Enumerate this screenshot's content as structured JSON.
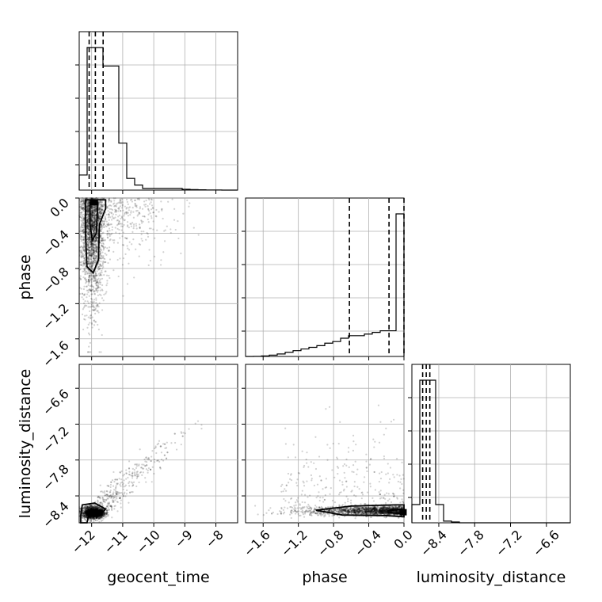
{
  "chart_data": {
    "type": "corner",
    "title": "",
    "parameters": [
      {
        "name": "geocent_time",
        "label": "geocent_time",
        "range": [
          -12.4,
          -7.3
        ],
        "ticks": [
          "−12",
          "−11",
          "−10",
          "−9",
          "−8"
        ],
        "tick_values": [
          -12,
          -11,
          -10,
          -9,
          -8
        ],
        "quantiles": [
          -12.08,
          -11.88,
          -11.63
        ]
      },
      {
        "name": "phase",
        "label": "phase",
        "range": [
          -1.8,
          0.0
        ],
        "ticks": [
          "−1.6",
          "−1.2",
          "−0.8",
          "−0.4",
          "0.0"
        ],
        "tick_values": [
          -1.6,
          -1.2,
          -0.8,
          -0.4,
          0.0
        ],
        "quantiles": [
          -0.62,
          -0.17,
          0.0
        ]
      },
      {
        "name": "luminosity_distance",
        "label": "luminosity_distance",
        "range": [
          -8.85,
          -6.2
        ],
        "ticks": [
          "−8.4",
          "−7.8",
          "−7.2",
          "−6.6"
        ],
        "tick_values": [
          -8.4,
          -7.8,
          -7.2,
          -6.6
        ],
        "quantiles": [
          -8.67,
          -8.61,
          -8.55
        ]
      }
    ],
    "histograms": {
      "geocent_time": {
        "edges_start": -12.4,
        "bin_width": 0.255,
        "counts": [
          0.09,
          0.85,
          0.85,
          0.74,
          0.74,
          0.28,
          0.07,
          0.03,
          0.01,
          0.01,
          0.01,
          0.01,
          0.01,
          0.005,
          0.003,
          0.002,
          0.001,
          0.001,
          0.0,
          0.0
        ]
      },
      "phase": {
        "edges_start": -1.8,
        "bin_width": 0.09,
        "counts": [
          0.0,
          0.001,
          0.003,
          0.008,
          0.015,
          0.025,
          0.035,
          0.045,
          0.055,
          0.065,
          0.08,
          0.09,
          0.11,
          0.125,
          0.125,
          0.135,
          0.145,
          0.155,
          0.155,
          0.86
        ]
      },
      "luminosity_distance": {
        "edges_start": -8.85,
        "bin_width": 0.1325,
        "counts": [
          0.11,
          0.86,
          0.86,
          0.11,
          0.01,
          0.005,
          0.0,
          0.0,
          0.0,
          0.0,
          0.0,
          0.0,
          0.0,
          0.0,
          0.0,
          0.0,
          0.0,
          0.0,
          0.0,
          0.0
        ]
      }
    },
    "grid": true
  }
}
